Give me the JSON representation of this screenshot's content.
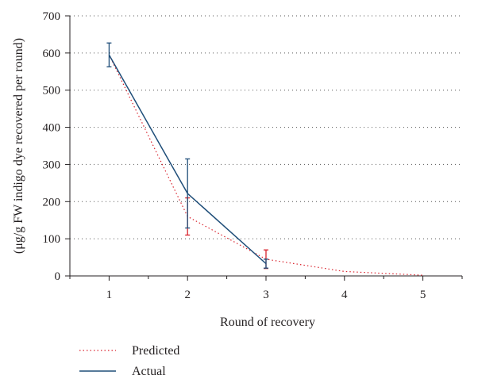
{
  "chart_data": {
    "type": "line",
    "xlabel": "Round of recovery",
    "ylabel": "(μg/g FW indigo dye recovered per round)",
    "x_ticks": [
      "1",
      "2",
      "3",
      "4",
      "5"
    ],
    "y_ticks": [
      "0",
      "100",
      "200",
      "300",
      "400",
      "500",
      "600",
      "700"
    ],
    "xlim": [
      0.5,
      5.5
    ],
    "ylim": [
      0,
      700
    ],
    "grid": "horizontal dotted",
    "legend_position": "bottom-left",
    "series": [
      {
        "name": "Predicted",
        "style": "dotted",
        "color": "#d9232d",
        "x": [
          1,
          2,
          3,
          4,
          5
        ],
        "y": [
          595,
          160,
          45,
          12,
          2
        ],
        "error": [
          null,
          50,
          25,
          null,
          null
        ]
      },
      {
        "name": "Actual",
        "style": "solid",
        "color": "#1f4e79",
        "x": [
          1,
          2,
          3
        ],
        "y": [
          595,
          222,
          33
        ],
        "error": [
          32,
          93,
          12
        ]
      }
    ]
  }
}
